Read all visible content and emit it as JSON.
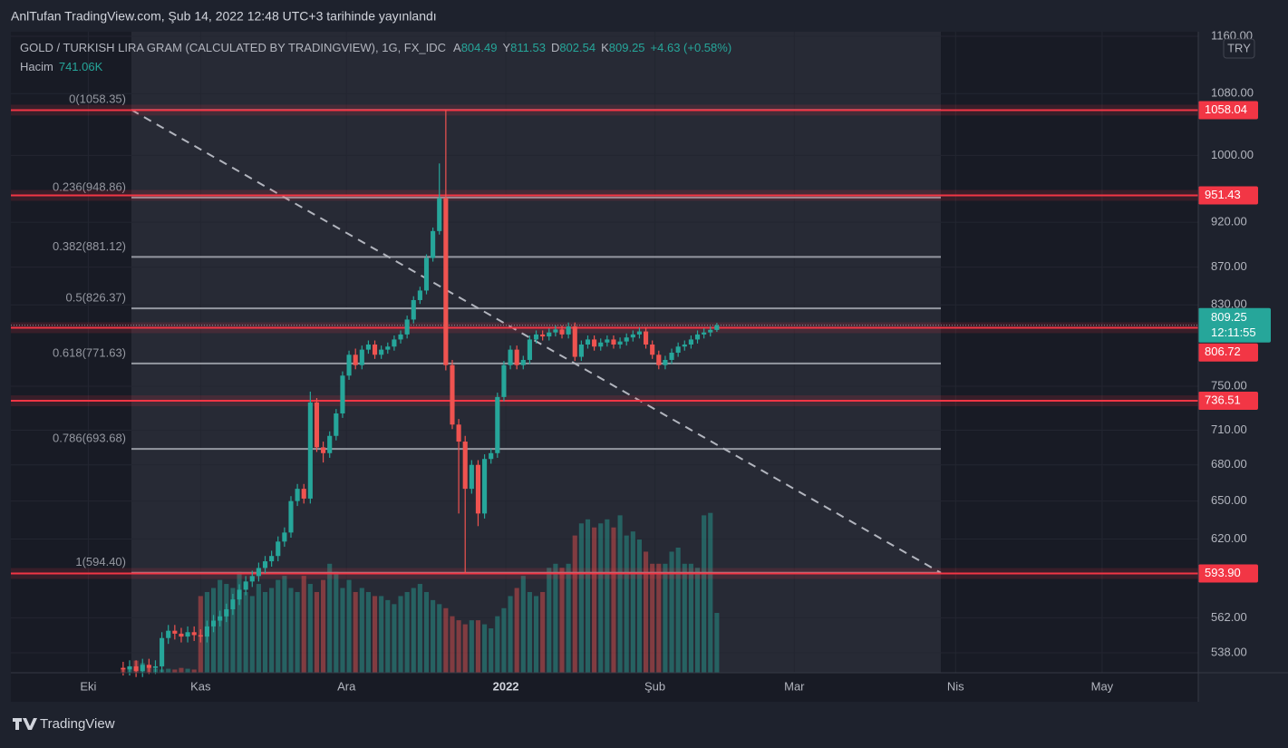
{
  "header": {
    "published": "AnlTufan TradingView.com, Şub 14, 2022 12:48 UTC+3 tarihinde yayınlandı",
    "symbol": "GOLD / TURKISH LIRA GRAM (CALCULATED BY TRADINGVIEW), 1G, FX_IDC",
    "ohlc": [
      {
        "label": "A",
        "value": 804.49
      },
      {
        "label": "Y",
        "value": 811.53
      },
      {
        "label": "D",
        "value": 802.54
      },
      {
        "label": "K",
        "value": 809.25
      }
    ],
    "change": "+4.63 (+0.58%)",
    "volume_title": "Hacim",
    "volume_value": "741.06K",
    "currency": "TRY",
    "footer": "TradingView"
  },
  "chart_data": {
    "type": "candlestick",
    "log_scale": true,
    "grid": true,
    "up_color": "#26a69a",
    "down_color": "#ef5350",
    "x": [
      -12,
      -11,
      -10,
      -9,
      -8,
      -7,
      -6,
      -5,
      -4,
      -3,
      -2,
      -1,
      0,
      1,
      2,
      3,
      4,
      5,
      6,
      7,
      8,
      9,
      10,
      11,
      12,
      13,
      14,
      15,
      16,
      17,
      18,
      19,
      20,
      21,
      22,
      23,
      24,
      25,
      26,
      27,
      28,
      29,
      30,
      31,
      32,
      33,
      34,
      35,
      36,
      37,
      38,
      39,
      40,
      41,
      42,
      43,
      44,
      45,
      46,
      47,
      48,
      49,
      50,
      51,
      52,
      53,
      54,
      55,
      56,
      57,
      58,
      59,
      60,
      61,
      62,
      63,
      64,
      65,
      66,
      67,
      68,
      69,
      70,
      71,
      72,
      73,
      74,
      75,
      76,
      77,
      78,
      79,
      80
    ],
    "open": [
      528,
      527,
      529,
      526,
      530,
      528,
      529,
      548,
      553,
      551,
      549,
      552,
      550,
      549,
      556,
      560,
      563,
      568,
      575,
      582,
      588,
      592,
      598,
      603,
      607,
      618,
      625,
      650,
      660,
      652,
      735,
      695,
      690,
      705,
      725,
      760,
      780,
      770,
      785,
      790,
      780,
      785,
      788,
      795,
      800,
      815,
      835,
      845,
      880,
      910,
      948,
      770,
      715,
      700,
      660,
      680,
      640,
      685,
      690,
      740,
      770,
      785,
      770,
      775,
      795,
      800,
      798,
      802,
      805,
      800,
      808,
      778,
      790,
      795,
      788,
      792,
      795,
      790,
      793,
      797,
      800,
      803,
      790,
      780,
      770,
      775,
      782,
      788,
      790,
      795,
      800,
      802,
      804.49
    ],
    "high": [
      532,
      533,
      533,
      534,
      534,
      533,
      552,
      557,
      557,
      555,
      556,
      556,
      554,
      560,
      564,
      567,
      572,
      579,
      586,
      592,
      596,
      602,
      607,
      611,
      622,
      629,
      654,
      664,
      664,
      745,
      739,
      700,
      709,
      729,
      764,
      784,
      786,
      789,
      794,
      794,
      789,
      792,
      799,
      804,
      819,
      839,
      849,
      884,
      914,
      990,
      1058.35,
      775,
      720,
      705,
      684,
      684,
      689,
      694,
      744,
      774,
      789,
      789,
      779,
      799,
      804,
      804,
      806,
      809,
      809,
      812,
      812,
      794,
      799,
      799,
      796,
      799,
      799,
      797,
      801,
      804,
      807,
      807,
      794,
      784,
      779,
      786,
      792,
      794,
      799,
      804,
      806,
      808,
      811.53
    ],
    "low": [
      523,
      523,
      522,
      522,
      524,
      524,
      525,
      544,
      547,
      545,
      545,
      546,
      545,
      545,
      552,
      556,
      559,
      564,
      571,
      578,
      584,
      588,
      594,
      599,
      603,
      614,
      621,
      646,
      648,
      648,
      691,
      682,
      686,
      701,
      721,
      756,
      766,
      766,
      781,
      776,
      776,
      781,
      784,
      791,
      796,
      811,
      831,
      841,
      876,
      906,
      765,
      711,
      640,
      594.4,
      656,
      630,
      636,
      681,
      686,
      736,
      766,
      766,
      766,
      771,
      791,
      794,
      794,
      798,
      796,
      796,
      774,
      774,
      786,
      784,
      784,
      788,
      786,
      786,
      789,
      793,
      796,
      786,
      776,
      766,
      766,
      771,
      778,
      784,
      786,
      791,
      796,
      798,
      802.54
    ],
    "close": [
      527,
      529,
      526,
      530,
      528,
      529,
      548,
      553,
      551,
      549,
      552,
      550,
      549,
      556,
      560,
      563,
      568,
      575,
      582,
      588,
      592,
      598,
      603,
      607,
      618,
      625,
      650,
      660,
      652,
      735,
      695,
      690,
      705,
      725,
      760,
      780,
      770,
      785,
      790,
      780,
      785,
      788,
      795,
      800,
      815,
      835,
      845,
      880,
      910,
      948,
      770,
      715,
      700,
      660,
      680,
      640,
      685,
      690,
      740,
      770,
      785,
      770,
      775,
      795,
      800,
      798,
      802,
      805,
      800,
      808,
      778,
      790,
      795,
      788,
      792,
      795,
      790,
      793,
      797,
      800,
      803,
      790,
      780,
      770,
      775,
      782,
      788,
      790,
      795,
      800,
      802,
      804.62,
      809.25
    ],
    "volume": [
      60,
      80,
      150,
      120,
      70,
      50,
      40,
      50,
      40,
      60,
      50,
      40,
      950,
      1000,
      1050,
      1150,
      1100,
      1050,
      1250,
      1000,
      950,
      1100,
      1000,
      1050,
      1150,
      1200,
      1050,
      1000,
      1200,
      1100,
      1000,
      1150,
      1350,
      1250,
      1050,
      1150,
      1000,
      1050,
      1000,
      950,
      950,
      900,
      850,
      950,
      1000,
      1050,
      1100,
      1000,
      900,
      850,
      800,
      700,
      650,
      600,
      650,
      650,
      600,
      550,
      700,
      800,
      950,
      1050,
      1200,
      1000,
      950,
      1000,
      1300,
      1350,
      1300,
      1350,
      1700,
      1850,
      1900,
      1800,
      1850,
      1900,
      1800,
      1950,
      1700,
      1750,
      1650,
      1500,
      1350,
      1350,
      1350,
      1500,
      1550,
      1350,
      1350,
      1300,
      1950,
      1980,
      741.06
    ],
    "volume_ylim": [
      0,
      7940
    ],
    "xlim": [
      -29.4,
      154.6
    ],
    "xticks": [
      {
        "value": -17.4,
        "label": "Eki"
      },
      {
        "value": 0,
        "label": "Kas"
      },
      {
        "value": 22.6,
        "label": "Ara"
      },
      {
        "value": 47.3,
        "label": "2022"
      },
      {
        "value": 70.4,
        "label": "Şub"
      },
      {
        "value": 92,
        "label": "Mar"
      },
      {
        "value": 117,
        "label": "Nis"
      },
      {
        "value": 139.7,
        "label": "May"
      }
    ],
    "ylim": [
      524.8,
      1166.6
    ],
    "yticks": [
      {
        "value": 1160,
        "label": "1160.00"
      },
      {
        "value": 1080,
        "label": "1080.00"
      },
      {
        "value": 1000,
        "label": "1000.00"
      },
      {
        "value": 920,
        "label": "920.00"
      },
      {
        "value": 870,
        "label": "870.00"
      },
      {
        "value": 830,
        "label": "830.00"
      },
      {
        "value": 750,
        "label": "750.00"
      },
      {
        "value": 710,
        "label": "710.00"
      },
      {
        "value": 680,
        "label": "680.00"
      },
      {
        "value": 650,
        "label": "650.00"
      },
      {
        "value": 620,
        "label": "620.00"
      },
      {
        "value": 562,
        "label": "562.00"
      },
      {
        "value": 538,
        "label": "538.00"
      }
    ],
    "fib": [
      {
        "label": "0(1058.35)",
        "price": 1058.35
      },
      {
        "label": "0.236(948.86)",
        "price": 948.86
      },
      {
        "label": "0.382(881.12)",
        "price": 881.12
      },
      {
        "label": "0.5(826.37)",
        "price": 826.37
      },
      {
        "label": "0.618(771.63)",
        "price": 771.63
      },
      {
        "label": "0.786(693.68)",
        "price": 693.68
      },
      {
        "label": "1(594.40)",
        "price": 594.4
      }
    ],
    "levels": [
      1058.04,
      951.43,
      806.72,
      736.51,
      {
        "value": 593.9,
        "label": "593.90"
      }
    ],
    "level_color": "#f23645",
    "last_price": {
      "value": 809.25,
      "time": "12:11:55"
    }
  }
}
